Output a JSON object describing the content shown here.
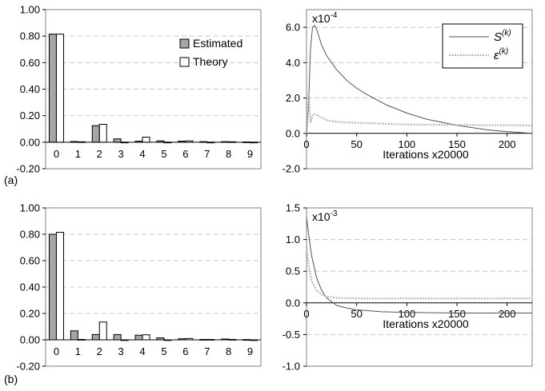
{
  "panel_labels": [
    "(a)",
    "(b)"
  ],
  "chart_data": [
    {
      "id": "a-bars",
      "type": "bar",
      "categories": [
        "0",
        "1",
        "2",
        "3",
        "4",
        "5",
        "6",
        "7",
        "8",
        "9"
      ],
      "series": [
        {
          "name": "Estimated",
          "color": "#a6a6a6",
          "values": [
            0.815,
            0.005,
            0.125,
            0.025,
            0.008,
            0.01,
            0.008,
            0.004,
            0.004,
            0.002
          ]
        },
        {
          "name": "Theory",
          "color": "#ffffff",
          "values": [
            0.815,
            0.003,
            0.135,
            0.0,
            0.038,
            0.0,
            0.01,
            0.0,
            0.003,
            0.0
          ]
        }
      ],
      "ylim": [
        -0.2,
        1.0
      ],
      "yticks": [
        "1.00",
        "0.80",
        "0.60",
        "0.40",
        "0.20",
        "0.00",
        "-0.20"
      ],
      "ytick_values": [
        1.0,
        0.8,
        0.6,
        0.4,
        0.2,
        0.0,
        -0.2
      ],
      "grid": true,
      "legend": "top-right"
    },
    {
      "id": "a-curves",
      "type": "line",
      "multiplier": "x10",
      "multiplier_exp": "-4",
      "xlabel": "Iterations x20000",
      "xlim": [
        0,
        225
      ],
      "xticks": [
        "0",
        "50",
        "100",
        "150",
        "200"
      ],
      "xtick_values": [
        0,
        50,
        100,
        150,
        200
      ],
      "ylim": [
        -2,
        7
      ],
      "yticks": [
        "6.0",
        "4.0",
        "2.0",
        "0.0",
        "-2.0"
      ],
      "ytick_values": [
        6,
        4,
        2,
        0,
        -2
      ],
      "grid": true,
      "legend": "top-right",
      "series": [
        {
          "name": "S",
          "sup": "(k)",
          "style": "solid",
          "color": "#555555",
          "x": [
            0,
            2,
            4,
            6,
            8,
            10,
            15,
            20,
            30,
            40,
            50,
            60,
            80,
            100,
            120,
            150,
            180,
            200,
            225
          ],
          "y": [
            0.0,
            1.5,
            4.8,
            6.0,
            6.1,
            5.9,
            5.0,
            4.4,
            3.6,
            3.0,
            2.55,
            2.2,
            1.6,
            1.15,
            0.8,
            0.45,
            0.2,
            0.1,
            0.0
          ]
        },
        {
          "name": "ε",
          "sup": "(k)",
          "style": "dotted",
          "color": "#b3b3b3",
          "x": [
            0,
            2,
            4,
            6,
            8,
            10,
            15,
            20,
            30,
            50,
            75,
            100,
            150,
            200,
            225
          ],
          "y": [
            0.0,
            2.4,
            0.6,
            1.0,
            1.1,
            1.05,
            0.9,
            0.75,
            0.65,
            0.6,
            0.55,
            0.5,
            0.48,
            0.45,
            0.45
          ]
        }
      ]
    },
    {
      "id": "b-bars",
      "type": "bar",
      "categories": [
        "0",
        "1",
        "2",
        "3",
        "4",
        "5",
        "6",
        "7",
        "8",
        "9"
      ],
      "series": [
        {
          "name": "Estimated",
          "color": "#a6a6a6",
          "values": [
            0.8,
            0.068,
            0.04,
            0.04,
            0.035,
            0.015,
            0.008,
            0.003,
            0.006,
            0.002
          ]
        },
        {
          "name": "Theory",
          "color": "#ffffff",
          "values": [
            0.815,
            0.003,
            0.135,
            0.0,
            0.038,
            0.0,
            0.01,
            0.003,
            0.003,
            0.0
          ]
        }
      ],
      "ylim": [
        -0.2,
        1.0
      ],
      "yticks": [
        "1.00",
        "0.80",
        "0.60",
        "0.40",
        "0.20",
        "0.00",
        "-0.20"
      ],
      "ytick_values": [
        1.0,
        0.8,
        0.6,
        0.4,
        0.2,
        0.0,
        -0.2
      ],
      "grid": true
    },
    {
      "id": "b-curves",
      "type": "line",
      "multiplier": "x10",
      "multiplier_exp": "-3",
      "xlabel": "Iterations x20000",
      "xlim": [
        0,
        225
      ],
      "xticks": [
        "0",
        "50",
        "100",
        "150",
        "200"
      ],
      "xtick_values": [
        0,
        50,
        100,
        150,
        200
      ],
      "ylim": [
        -1.0,
        1.5
      ],
      "yticks": [
        "1.5",
        "1.0",
        "0.5",
        "0.0",
        "-0.5",
        "-1.0"
      ],
      "ytick_values": [
        1.5,
        1.0,
        0.5,
        0.0,
        -0.5,
        -1.0
      ],
      "grid": true,
      "series": [
        {
          "name": "S",
          "sup": "(k)",
          "style": "solid",
          "color": "#555555",
          "x": [
            0,
            2,
            5,
            10,
            15,
            20,
            30,
            40,
            50,
            75,
            100,
            150,
            200,
            225
          ],
          "y": [
            1.35,
            1.1,
            0.75,
            0.4,
            0.2,
            0.08,
            -0.04,
            -0.08,
            -0.11,
            -0.14,
            -0.15,
            -0.16,
            -0.16,
            -0.16
          ]
        },
        {
          "name": "ε",
          "sup": "(k)",
          "style": "dotted",
          "color": "#b3b3b3",
          "x": [
            0,
            2,
            5,
            10,
            15,
            20,
            30,
            50,
            100,
            150,
            200,
            225
          ],
          "y": [
            0.9,
            0.6,
            0.35,
            0.2,
            0.13,
            0.1,
            0.08,
            0.07,
            0.07,
            0.07,
            0.07,
            0.07
          ]
        }
      ]
    }
  ]
}
